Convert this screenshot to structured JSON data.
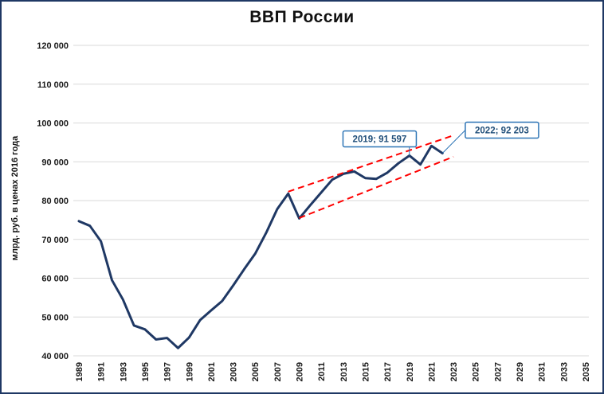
{
  "chart_data": {
    "type": "line",
    "title": "ВВП России",
    "ylabel": "млрд. руб. в ценах 2016 года",
    "xlabel": "",
    "ylim": [
      40000,
      120000
    ],
    "ytick_step": 10000,
    "xlim": [
      1989,
      2035
    ],
    "grid": "horizontal",
    "legend": "none",
    "xticks": [
      1989,
      1991,
      1993,
      1995,
      1997,
      1999,
      2001,
      2003,
      2005,
      2007,
      2009,
      2011,
      2013,
      2015,
      2017,
      2019,
      2021,
      2023,
      2025,
      2027,
      2029,
      2031,
      2033,
      2035
    ],
    "series": [
      {
        "name": "ВВП России, млрд. руб. в ценах 2016 года",
        "color": "#1F3864",
        "x": [
          1989,
          1990,
          1991,
          1992,
          1993,
          1994,
          1995,
          1996,
          1997,
          1998,
          1999,
          2000,
          2001,
          2002,
          2003,
          2004,
          2005,
          2006,
          2007,
          2008,
          2009,
          2010,
          2011,
          2012,
          2013,
          2014,
          2015,
          2016,
          2017,
          2018,
          2019,
          2020,
          2021,
          2022
        ],
        "values": [
          74700,
          73500,
          69500,
          59500,
          54500,
          47800,
          46800,
          44200,
          44600,
          42000,
          44700,
          49200,
          51700,
          54100,
          58100,
          62300,
          66300,
          71700,
          77800,
          81800,
          75400,
          78800,
          82100,
          85400,
          86900,
          87500,
          85800,
          85600,
          87200,
          89600,
          91597,
          89300,
          94100,
          92203
        ]
      }
    ],
    "trendlines": [
      {
        "name": "upper-channel",
        "color": "#FF0000",
        "style": "dashed",
        "points": [
          [
            2008,
            82300
          ],
          [
            2023,
            96800
          ]
        ]
      },
      {
        "name": "lower-channel",
        "color": "#FF0000",
        "style": "dashed",
        "points": [
          [
            2009,
            75500
          ],
          [
            2023,
            91300
          ]
        ]
      }
    ],
    "annotations": [
      {
        "label": "2019; 91 597",
        "target_x": 2019,
        "target_y": 91597,
        "box_x": 2016.3,
        "box_y": 95900
      },
      {
        "label": "2022; 92 203",
        "target_x": 2022,
        "target_y": 92203,
        "box_x": 2027.4,
        "box_y": 98150
      }
    ],
    "colors": {
      "line": "#1F3864",
      "trend": "#FF0000",
      "grid": "#d9d9d9",
      "tick_text": "#1a1a1a",
      "annotation_border": "#2E75B6",
      "annotation_text": "#1F4E79",
      "frame_border": "#1F3864"
    }
  }
}
